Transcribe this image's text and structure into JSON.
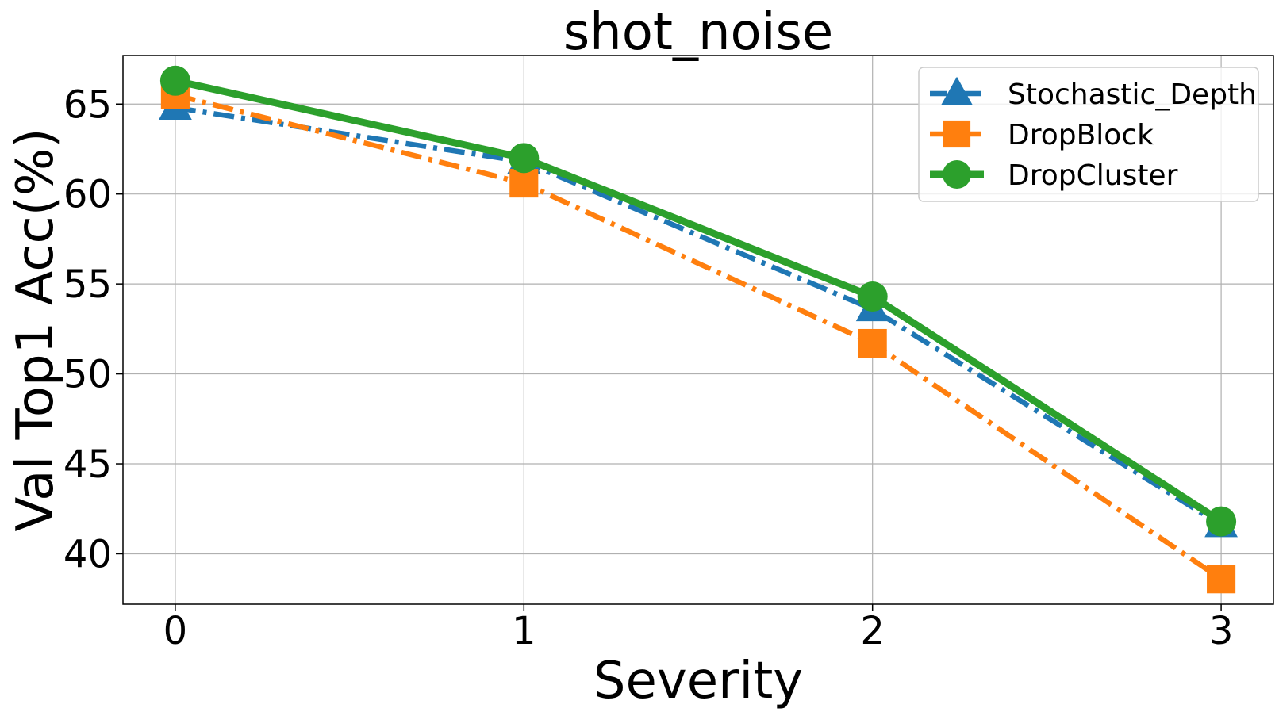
{
  "chart_data": {
    "type": "line",
    "title": "shot_noise",
    "xlabel": "Severity",
    "ylabel": "Val Top1 Acc(%)",
    "x": [
      0,
      1,
      2,
      3
    ],
    "xticks": [
      "0",
      "1",
      "2",
      "3"
    ],
    "yticks": [
      "40",
      "45",
      "50",
      "55",
      "60",
      "65"
    ],
    "ytick_values": [
      40,
      45,
      50,
      55,
      60,
      65
    ],
    "xlim": [
      -0.15,
      3.15
    ],
    "ylim": [
      37.2,
      67.7
    ],
    "grid": true,
    "legend_position": "top-right",
    "series": [
      {
        "name": "Stochastic_Depth",
        "values": [
          64.8,
          61.8,
          53.6,
          41.6
        ],
        "color": "#1f77b4",
        "linestyle": "dashdot",
        "marker": "triangle"
      },
      {
        "name": "DropBlock",
        "values": [
          65.5,
          60.6,
          51.7,
          38.6
        ],
        "color": "#ff7f0e",
        "linestyle": "dashdot",
        "marker": "square"
      },
      {
        "name": "DropCluster",
        "values": [
          66.3,
          62.0,
          54.3,
          41.8
        ],
        "color": "#2ca02c",
        "linestyle": "solid",
        "marker": "circle"
      }
    ]
  }
}
